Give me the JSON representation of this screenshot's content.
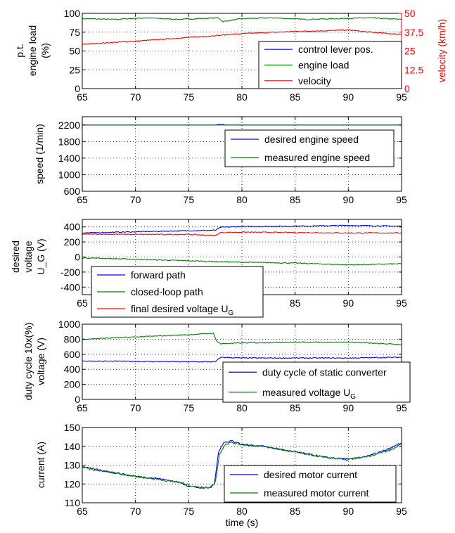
{
  "colors": {
    "blue": "#0000ff",
    "green": "#008000",
    "red": "#ff0000",
    "axis_right": "#ff0000"
  },
  "chart_data": [
    {
      "type": "line",
      "title": "",
      "ylabel_lines": [
        "p.t.",
        "engine load",
        "(%)"
      ],
      "y2label": "velocity (km/h)",
      "xlim": [
        65,
        95
      ],
      "ylim": [
        0,
        100
      ],
      "y2lim": [
        0,
        50
      ],
      "xticks": [
        "65",
        "70",
        "75",
        "80",
        "85",
        "90",
        "95"
      ],
      "yticks": [
        "0",
        "25",
        "50",
        "75",
        "100"
      ],
      "y2ticks": [
        "0",
        "12.5",
        "25",
        "37.5",
        "50"
      ],
      "grid": true,
      "legend_position": "bottom-right",
      "series": [
        {
          "name": "control lever pos.",
          "color": "#0000ff",
          "axis": "left",
          "x": [
            65,
            95
          ],
          "y": [
            100,
            100
          ]
        },
        {
          "name": "engine load",
          "color": "#008000",
          "axis": "left",
          "x": [
            65,
            68,
            71,
            74,
            76,
            77.8,
            78.2,
            80,
            83,
            86,
            89,
            92,
            95
          ],
          "y": [
            93,
            92,
            94,
            92,
            93,
            94,
            89,
            93,
            94,
            92,
            93,
            94,
            92
          ]
        },
        {
          "name": "velocity",
          "color": "#ff0000",
          "axis": "right",
          "x": [
            65,
            70,
            75,
            80,
            85,
            88,
            90,
            92,
            95
          ],
          "y": [
            29.5,
            31.5,
            34,
            36.5,
            38,
            38.5,
            39,
            37.5,
            36
          ]
        }
      ]
    },
    {
      "type": "line",
      "title": "",
      "ylabel_lines": [
        "speed (1/min)"
      ],
      "xlim": [
        65,
        95
      ],
      "ylim": [
        600,
        2400
      ],
      "xticks": [
        "65",
        "70",
        "75",
        "80",
        "85",
        "90",
        "95"
      ],
      "yticks": [
        "600",
        "1000",
        "1400",
        "1800",
        "2200"
      ],
      "grid": true,
      "legend_position": "top-right",
      "series": [
        {
          "name": "desired engine speed",
          "color": "#0000ff",
          "x": [
            65,
            77.6,
            77.7,
            78.3,
            78.4,
            95
          ],
          "y": [
            2200,
            2200,
            2215,
            2215,
            2200,
            2200
          ]
        },
        {
          "name": "measured engine speed",
          "color": "#008000",
          "x": [
            65,
            95
          ],
          "y": [
            2200,
            2200
          ]
        }
      ]
    },
    {
      "type": "line",
      "title": "",
      "ylabel_lines": [
        "desired",
        "voltage",
        "U_G (V)"
      ],
      "xlim": [
        65,
        95
      ],
      "ylim": [
        -500,
        500
      ],
      "xticks": [
        "65",
        "70",
        "75",
        "80",
        "85",
        "90",
        "95"
      ],
      "yticks": [
        "-400",
        "-200",
        "0",
        "200",
        "400"
      ],
      "grid": true,
      "legend_position": "bottom-left",
      "series": [
        {
          "name": "forward path",
          "color": "#0000ff",
          "x": [
            65,
            70,
            75,
            77.5,
            78,
            80,
            85,
            90,
            95
          ],
          "y": [
            320,
            335,
            350,
            355,
            395,
            405,
            410,
            420,
            410
          ]
        },
        {
          "name": "closed-loop path",
          "color": "#008000",
          "x": [
            65,
            70,
            75,
            80,
            85,
            90,
            95
          ],
          "y": [
            -10,
            -30,
            -50,
            -70,
            -80,
            -105,
            -90
          ]
        },
        {
          "name": "final desired voltage U_G",
          "color": "#ff0000",
          "x": [
            65,
            70,
            75,
            77.5,
            78,
            80,
            85,
            90,
            95
          ],
          "y": [
            305,
            300,
            300,
            285,
            325,
            330,
            325,
            320,
            320
          ]
        }
      ]
    },
    {
      "type": "line",
      "title": "",
      "ylabel_lines": [
        "duty cycle 10x(%)",
        "voltage (V)"
      ],
      "xlim": [
        65,
        95
      ],
      "ylim": [
        0,
        1000
      ],
      "xticks": [
        "65",
        "70",
        "75",
        "80",
        "85",
        "90",
        "95"
      ],
      "yticks": [
        "0",
        "200",
        "400",
        "600",
        "800",
        "1000"
      ],
      "grid": true,
      "legend_position": "bottom-right",
      "series": [
        {
          "name": "duty cycle of static converter",
          "color": "#0000ff",
          "x": [
            65,
            70,
            75,
            77.5,
            78,
            80,
            85,
            90,
            95
          ],
          "y": [
            510,
            505,
            500,
            500,
            560,
            550,
            550,
            550,
            560
          ]
        },
        {
          "name": "measured voltage U_G",
          "color": "#008000",
          "x": [
            65,
            70,
            75,
            77.3,
            77.6,
            78,
            80,
            85,
            90,
            95
          ],
          "y": [
            800,
            830,
            860,
            880,
            780,
            740,
            750,
            760,
            760,
            730
          ]
        }
      ]
    },
    {
      "type": "line",
      "title": "",
      "ylabel_lines": [
        "current (A)"
      ],
      "xlabel": "time (s)",
      "xlim": [
        65,
        95
      ],
      "ylim": [
        110,
        150
      ],
      "xticks": [
        "65",
        "70",
        "75",
        "80",
        "85",
        "90",
        "95"
      ],
      "yticks": [
        "110",
        "120",
        "130",
        "140",
        "150"
      ],
      "grid": true,
      "legend_position": "bottom-right",
      "series": [
        {
          "name": "desired motor current",
          "color": "#0000ff",
          "x": [
            65,
            66,
            68,
            70,
            72,
            74,
            75,
            76,
            77,
            77.4,
            77.8,
            78.3,
            79,
            80,
            82,
            84,
            86,
            88,
            90,
            92,
            94,
            95
          ],
          "y": [
            129,
            128,
            126,
            124,
            123,
            121,
            119,
            118,
            118,
            120,
            137,
            142,
            143,
            141,
            140,
            138,
            136,
            134,
            133,
            135,
            139,
            142
          ]
        },
        {
          "name": "measured motor current",
          "color": "#008000",
          "x": [
            65,
            66,
            68,
            70,
            72,
            74,
            75,
            76,
            77,
            77.5,
            77.9,
            78.4,
            79,
            80,
            82,
            84,
            86,
            88,
            90,
            92,
            94,
            95
          ],
          "y": [
            129,
            127.5,
            126,
            124,
            122.5,
            121,
            119.5,
            118,
            118,
            121,
            136,
            141,
            142,
            141,
            140,
            138,
            136,
            134,
            133,
            135,
            138,
            141
          ]
        }
      ]
    }
  ]
}
